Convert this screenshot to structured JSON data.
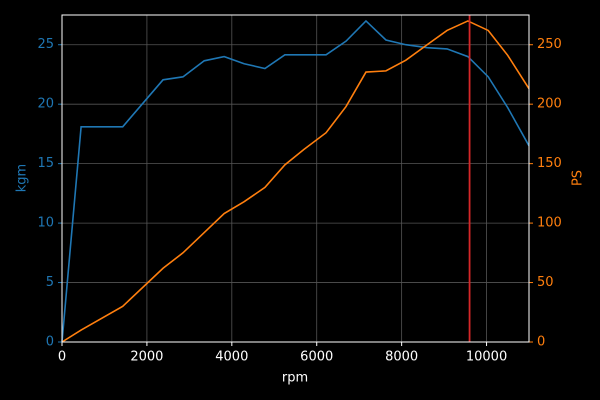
{
  "chart_data": {
    "type": "line",
    "x": [
      0,
      450,
      1430,
      2380,
      2850,
      3350,
      3820,
      4290,
      4780,
      5250,
      5700,
      6220,
      6690,
      7160,
      7630,
      8100,
      8600,
      9070,
      9560,
      10040,
      10500,
      11000
    ],
    "series": [
      {
        "name": "kgm",
        "color": "#1f77b4",
        "values": [
          0,
          18.1,
          18.1,
          22.05,
          22.3,
          23.65,
          24.0,
          23.4,
          23.0,
          24.15,
          24.15,
          24.15,
          25.3,
          27.0,
          25.4,
          25.0,
          24.75,
          24.65,
          24.0,
          22.3,
          19.7,
          16.5
        ]
      },
      {
        "name": "PS",
        "color": "#ff7f0e",
        "axis": "y2",
        "values": [
          0,
          10,
          30,
          62,
          75,
          92,
          108,
          118,
          130,
          149,
          162,
          176,
          198,
          227,
          228,
          237,
          250,
          262,
          270,
          262,
          241,
          213
        ]
      }
    ],
    "xlabel": "rpm",
    "ylabel": "kgm",
    "y2label": "PS",
    "xlim": [
      0,
      11000
    ],
    "xticks": [
      0,
      2000,
      4000,
      6000,
      8000,
      10000
    ],
    "ylim": [
      0,
      27.5
    ],
    "yticks": [
      0,
      5,
      10,
      15,
      20,
      25
    ],
    "y2lim": [
      0,
      275
    ],
    "y2ticks": [
      0,
      50,
      100,
      150,
      200,
      250
    ],
    "grid": true,
    "vline": {
      "x": 9600,
      "color": "#d62728"
    }
  }
}
